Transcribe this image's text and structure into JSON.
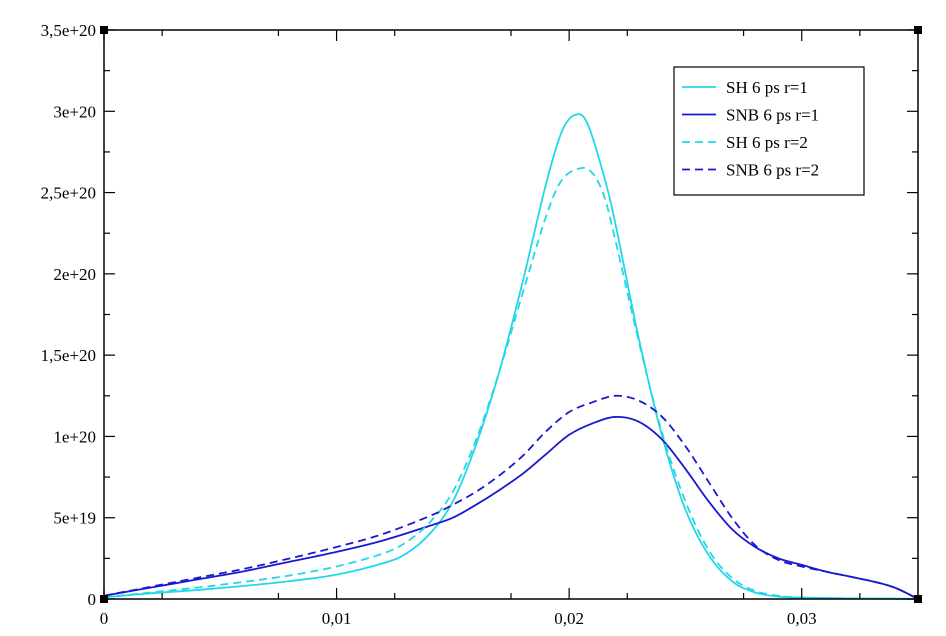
{
  "chart_data": {
    "type": "line",
    "title": "",
    "xlabel": "",
    "ylabel": "",
    "xlim": [
      0,
      0.035
    ],
    "ylim": [
      0,
      3.5e+20
    ],
    "grid": false,
    "legend_position": "top-right",
    "x_ticks": [
      {
        "value": 0,
        "label": "0"
      },
      {
        "value": 0.01,
        "label": "0,01"
      },
      {
        "value": 0.02,
        "label": "0,02"
      },
      {
        "value": 0.03,
        "label": "0,03"
      }
    ],
    "y_ticks": [
      {
        "value": 0,
        "label": "0"
      },
      {
        "value": 5e+19,
        "label": "5e+19"
      },
      {
        "value": 1e+20,
        "label": "1e+20"
      },
      {
        "value": 1.5e+20,
        "label": "1,5e+20"
      },
      {
        "value": 2e+20,
        "label": "2e+20"
      },
      {
        "value": 2.5e+20,
        "label": "2,5e+20"
      },
      {
        "value": 3e+20,
        "label": "3e+20"
      },
      {
        "value": 3.5e+20,
        "label": "3,5e+20"
      }
    ],
    "series": [
      {
        "name": "SH 6 ps r=1",
        "color": "#22d8e8",
        "dash": "solid",
        "points": [
          [
            0,
            1e+18
          ],
          [
            0.002,
            3.5e+18
          ],
          [
            0.004,
            5.5e+18
          ],
          [
            0.006,
            8e+18
          ],
          [
            0.008,
            1.1e+19
          ],
          [
            0.01,
            1.5e+19
          ],
          [
            0.012,
            2.2e+19
          ],
          [
            0.013,
            2.8e+19
          ],
          [
            0.014,
            4e+19
          ],
          [
            0.015,
            6e+19
          ],
          [
            0.016,
            9.5e+19
          ],
          [
            0.017,
            1.4e+20
          ],
          [
            0.018,
            1.95e+20
          ],
          [
            0.019,
            2.55e+20
          ],
          [
            0.0197,
            2.88e+20
          ],
          [
            0.0203,
            2.98e+20
          ],
          [
            0.0208,
            2.92e+20
          ],
          [
            0.0215,
            2.6e+20
          ],
          [
            0.022,
            2.3e+20
          ],
          [
            0.023,
            1.6e+20
          ],
          [
            0.024,
            1e+20
          ],
          [
            0.025,
            5.5e+19
          ],
          [
            0.026,
            2.7e+19
          ],
          [
            0.027,
            1.1e+19
          ],
          [
            0.028,
            4e+18
          ],
          [
            0.029,
            1.5e+18
          ],
          [
            0.03,
            8e+17
          ],
          [
            0.032,
            4e+17
          ],
          [
            0.034,
            2e+17
          ],
          [
            0.035,
            0
          ]
        ]
      },
      {
        "name": "SNB 6 ps r=1",
        "color": "#1818d0",
        "dash": "solid",
        "points": [
          [
            0,
            2e+18
          ],
          [
            0.002,
            7e+18
          ],
          [
            0.004,
            1.2e+19
          ],
          [
            0.006,
            1.7e+19
          ],
          [
            0.008,
            2.3e+19
          ],
          [
            0.01,
            2.9e+19
          ],
          [
            0.012,
            3.6e+19
          ],
          [
            0.014,
            4.5e+19
          ],
          [
            0.015,
            5e+19
          ],
          [
            0.016,
            5.8e+19
          ],
          [
            0.017,
            6.7e+19
          ],
          [
            0.018,
            7.7e+19
          ],
          [
            0.019,
            8.9e+19
          ],
          [
            0.02,
            1.01e+20
          ],
          [
            0.021,
            1.08e+20
          ],
          [
            0.022,
            1.12e+20
          ],
          [
            0.023,
            1.09e+20
          ],
          [
            0.024,
            9.8e+19
          ],
          [
            0.025,
            8e+19
          ],
          [
            0.026,
            6e+19
          ],
          [
            0.027,
            4.3e+19
          ],
          [
            0.028,
            3.2e+19
          ],
          [
            0.029,
            2.5e+19
          ],
          [
            0.03,
            2.1e+19
          ],
          [
            0.031,
            1.7e+19
          ],
          [
            0.032,
            1.4e+19
          ],
          [
            0.033,
            1.1e+19
          ],
          [
            0.034,
            7e+18
          ],
          [
            0.035,
            0
          ]
        ]
      },
      {
        "name": "SH 6 ps r=2",
        "color": "#22d8e8",
        "dash": "dashed",
        "points": [
          [
            0,
            1e+18
          ],
          [
            0.002,
            4e+18
          ],
          [
            0.004,
            7e+18
          ],
          [
            0.006,
            1.05e+19
          ],
          [
            0.008,
            1.45e+19
          ],
          [
            0.01,
            2e+19
          ],
          [
            0.012,
            2.8e+19
          ],
          [
            0.013,
            3.5e+19
          ],
          [
            0.014,
            4.7e+19
          ],
          [
            0.015,
            6.6e+19
          ],
          [
            0.016,
            9.8e+19
          ],
          [
            0.017,
            1.4e+20
          ],
          [
            0.018,
            1.88e+20
          ],
          [
            0.019,
            2.35e+20
          ],
          [
            0.0197,
            2.58e+20
          ],
          [
            0.0205,
            2.65e+20
          ],
          [
            0.021,
            2.62e+20
          ],
          [
            0.0215,
            2.48e+20
          ],
          [
            0.022,
            2.2e+20
          ],
          [
            0.023,
            1.58e+20
          ],
          [
            0.024,
            1.02e+20
          ],
          [
            0.025,
            6e+19
          ],
          [
            0.026,
            3e+19
          ],
          [
            0.027,
            1.3e+19
          ],
          [
            0.028,
            5e+18
          ],
          [
            0.029,
            2e+18
          ],
          [
            0.03,
            9e+17
          ],
          [
            0.032,
            4e+17
          ],
          [
            0.034,
            2e+17
          ],
          [
            0.035,
            0
          ]
        ]
      },
      {
        "name": "SNB 6 ps r=2",
        "color": "#1818d0",
        "dash": "dashed",
        "points": [
          [
            0,
            2e+18
          ],
          [
            0.002,
            7.5e+18
          ],
          [
            0.004,
            1.3e+19
          ],
          [
            0.006,
            1.85e+19
          ],
          [
            0.008,
            2.5e+19
          ],
          [
            0.01,
            3.2e+19
          ],
          [
            0.012,
            4e+19
          ],
          [
            0.014,
            5.1e+19
          ],
          [
            0.015,
            5.8e+19
          ],
          [
            0.016,
            6.6e+19
          ],
          [
            0.017,
            7.6e+19
          ],
          [
            0.018,
            8.8e+19
          ],
          [
            0.019,
            1.03e+20
          ],
          [
            0.02,
            1.15e+20
          ],
          [
            0.021,
            1.21e+20
          ],
          [
            0.022,
            1.25e+20
          ],
          [
            0.023,
            1.22e+20
          ],
          [
            0.024,
            1.12e+20
          ],
          [
            0.025,
            9.4e+19
          ],
          [
            0.026,
            7.2e+19
          ],
          [
            0.027,
            5e+19
          ],
          [
            0.028,
            3.3e+19
          ],
          [
            0.029,
            2.4e+19
          ],
          [
            0.03,
            2e+19
          ],
          [
            0.031,
            1.7e+19
          ],
          [
            0.032,
            1.4e+19
          ],
          [
            0.033,
            1.1e+19
          ],
          [
            0.034,
            7e+18
          ],
          [
            0.035,
            0
          ]
        ]
      }
    ]
  }
}
